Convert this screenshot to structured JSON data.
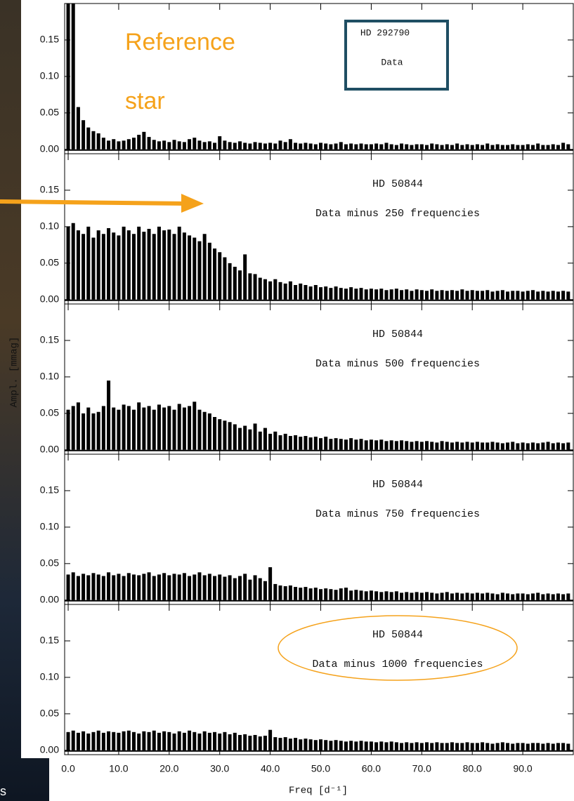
{
  "chart_data": {
    "type": "spectrum",
    "x_label": "Freq [d⁻¹]",
    "y_label": "Ampl. [mmag]",
    "color": "#000000",
    "xlim": [
      -0.7,
      100
    ],
    "ylim": [
      -0.006,
      0.2
    ],
    "xticks": [
      {
        "value": 0,
        "label": "0.0"
      },
      {
        "value": 10,
        "label": "10.0"
      },
      {
        "value": 20,
        "label": "20.0"
      },
      {
        "value": 30,
        "label": "30.0"
      },
      {
        "value": 40,
        "label": "40.0"
      },
      {
        "value": 50,
        "label": "50.0"
      },
      {
        "value": 60,
        "label": "60.0"
      },
      {
        "value": 70,
        "label": "70.0"
      },
      {
        "value": 80,
        "label": "80.0"
      },
      {
        "value": 90,
        "label": "90.0"
      }
    ],
    "yticks": [
      {
        "value": 0,
        "label": "0.00"
      },
      {
        "value": 0.05,
        "label": "0.05"
      },
      {
        "value": 0.1,
        "label": "0.10"
      },
      {
        "value": 0.15,
        "label": "0.15"
      }
    ],
    "x": [
      0,
      1,
      2,
      3,
      4,
      5,
      6,
      7,
      8,
      9,
      10,
      11,
      12,
      13,
      14,
      15,
      16,
      17,
      18,
      19,
      20,
      21,
      22,
      23,
      24,
      25,
      26,
      27,
      28,
      29,
      30,
      31,
      32,
      33,
      34,
      35,
      36,
      37,
      38,
      39,
      40,
      41,
      42,
      43,
      44,
      45,
      46,
      47,
      48,
      49,
      50,
      51,
      52,
      53,
      54,
      55,
      56,
      57,
      58,
      59,
      60,
      61,
      62,
      63,
      64,
      65,
      66,
      67,
      68,
      69,
      70,
      71,
      72,
      73,
      74,
      75,
      76,
      77,
      78,
      79,
      80,
      81,
      82,
      83,
      84,
      85,
      86,
      87,
      88,
      89,
      90,
      91,
      92,
      93,
      94,
      95,
      96,
      97,
      98,
      99
    ],
    "panels": [
      {
        "title": "HD 292790",
        "subtitle": "Data",
        "values": [
          0.2,
          0.2,
          0.058,
          0.04,
          0.03,
          0.025,
          0.022,
          0.016,
          0.012,
          0.014,
          0.011,
          0.012,
          0.014,
          0.016,
          0.02,
          0.024,
          0.017,
          0.013,
          0.011,
          0.012,
          0.01,
          0.013,
          0.011,
          0.01,
          0.014,
          0.016,
          0.012,
          0.01,
          0.011,
          0.009,
          0.018,
          0.012,
          0.01,
          0.009,
          0.011,
          0.009,
          0.008,
          0.01,
          0.009,
          0.008,
          0.009,
          0.008,
          0.012,
          0.01,
          0.014,
          0.009,
          0.008,
          0.009,
          0.008,
          0.007,
          0.009,
          0.008,
          0.007,
          0.008,
          0.01,
          0.007,
          0.008,
          0.007,
          0.008,
          0.007,
          0.007,
          0.008,
          0.007,
          0.009,
          0.007,
          0.006,
          0.008,
          0.007,
          0.006,
          0.007,
          0.007,
          0.006,
          0.008,
          0.007,
          0.006,
          0.007,
          0.006,
          0.008,
          0.006,
          0.007,
          0.006,
          0.007,
          0.006,
          0.008,
          0.006,
          0.007,
          0.006,
          0.006,
          0.007,
          0.006,
          0.006,
          0.007,
          0.006,
          0.008,
          0.006,
          0.006,
          0.007,
          0.006,
          0.009,
          0.007
        ]
      },
      {
        "title": "HD 50844",
        "subtitle": "Data minus 250 frequencies",
        "values": [
          0.1,
          0.105,
          0.095,
          0.09,
          0.1,
          0.085,
          0.095,
          0.09,
          0.098,
          0.092,
          0.088,
          0.1,
          0.095,
          0.09,
          0.1,
          0.093,
          0.097,
          0.09,
          0.1,
          0.095,
          0.096,
          0.09,
          0.1,
          0.092,
          0.088,
          0.085,
          0.08,
          0.09,
          0.078,
          0.07,
          0.065,
          0.058,
          0.05,
          0.045,
          0.04,
          0.062,
          0.036,
          0.035,
          0.03,
          0.028,
          0.025,
          0.028,
          0.024,
          0.022,
          0.025,
          0.02,
          0.022,
          0.02,
          0.018,
          0.02,
          0.017,
          0.018,
          0.016,
          0.018,
          0.016,
          0.015,
          0.017,
          0.015,
          0.016,
          0.014,
          0.015,
          0.014,
          0.015,
          0.013,
          0.014,
          0.015,
          0.013,
          0.014,
          0.012,
          0.014,
          0.013,
          0.012,
          0.014,
          0.012,
          0.013,
          0.012,
          0.013,
          0.012,
          0.014,
          0.012,
          0.013,
          0.012,
          0.012,
          0.013,
          0.011,
          0.012,
          0.013,
          0.011,
          0.012,
          0.012,
          0.011,
          0.012,
          0.013,
          0.011,
          0.012,
          0.011,
          0.012,
          0.011,
          0.012,
          0.011
        ]
      },
      {
        "title": "HD 50844",
        "subtitle": "Data minus 500 frequencies",
        "values": [
          0.055,
          0.06,
          0.065,
          0.05,
          0.058,
          0.05,
          0.052,
          0.06,
          0.095,
          0.058,
          0.055,
          0.062,
          0.06,
          0.055,
          0.065,
          0.058,
          0.06,
          0.055,
          0.062,
          0.058,
          0.06,
          0.055,
          0.063,
          0.058,
          0.06,
          0.066,
          0.055,
          0.052,
          0.05,
          0.045,
          0.042,
          0.04,
          0.038,
          0.035,
          0.03,
          0.033,
          0.028,
          0.036,
          0.025,
          0.03,
          0.022,
          0.025,
          0.02,
          0.022,
          0.019,
          0.02,
          0.018,
          0.019,
          0.017,
          0.018,
          0.016,
          0.018,
          0.015,
          0.016,
          0.015,
          0.014,
          0.016,
          0.014,
          0.015,
          0.013,
          0.014,
          0.013,
          0.014,
          0.012,
          0.013,
          0.012,
          0.013,
          0.012,
          0.011,
          0.012,
          0.011,
          0.012,
          0.011,
          0.01,
          0.012,
          0.011,
          0.01,
          0.011,
          0.01,
          0.011,
          0.01,
          0.011,
          0.01,
          0.01,
          0.011,
          0.01,
          0.009,
          0.01,
          0.011,
          0.009,
          0.01,
          0.009,
          0.01,
          0.009,
          0.01,
          0.011,
          0.009,
          0.01,
          0.009,
          0.01
        ]
      },
      {
        "title": "HD 50844",
        "subtitle": "Data minus 750 frequencies",
        "values": [
          0.035,
          0.038,
          0.033,
          0.036,
          0.034,
          0.037,
          0.035,
          0.033,
          0.038,
          0.034,
          0.036,
          0.033,
          0.037,
          0.035,
          0.034,
          0.036,
          0.038,
          0.033,
          0.035,
          0.037,
          0.034,
          0.036,
          0.035,
          0.037,
          0.033,
          0.035,
          0.038,
          0.034,
          0.036,
          0.033,
          0.035,
          0.032,
          0.034,
          0.03,
          0.033,
          0.036,
          0.028,
          0.034,
          0.03,
          0.026,
          0.045,
          0.022,
          0.02,
          0.019,
          0.02,
          0.018,
          0.017,
          0.018,
          0.016,
          0.017,
          0.015,
          0.016,
          0.015,
          0.014,
          0.016,
          0.017,
          0.013,
          0.014,
          0.013,
          0.012,
          0.013,
          0.012,
          0.011,
          0.012,
          0.011,
          0.012,
          0.01,
          0.011,
          0.01,
          0.011,
          0.01,
          0.011,
          0.01,
          0.009,
          0.01,
          0.011,
          0.009,
          0.01,
          0.009,
          0.01,
          0.009,
          0.01,
          0.009,
          0.01,
          0.009,
          0.008,
          0.01,
          0.009,
          0.008,
          0.009,
          0.009,
          0.008,
          0.009,
          0.01,
          0.008,
          0.009,
          0.008,
          0.009,
          0.008,
          0.009
        ]
      },
      {
        "title": "HD 50844",
        "subtitle": "Data minus 1000 frequencies",
        "values": [
          0.025,
          0.027,
          0.024,
          0.026,
          0.023,
          0.025,
          0.027,
          0.024,
          0.026,
          0.025,
          0.024,
          0.026,
          0.027,
          0.025,
          0.023,
          0.026,
          0.025,
          0.027,
          0.024,
          0.026,
          0.025,
          0.023,
          0.026,
          0.024,
          0.027,
          0.025,
          0.023,
          0.026,
          0.024,
          0.025,
          0.023,
          0.025,
          0.022,
          0.024,
          0.021,
          0.022,
          0.02,
          0.021,
          0.019,
          0.02,
          0.028,
          0.018,
          0.017,
          0.018,
          0.016,
          0.017,
          0.015,
          0.016,
          0.015,
          0.014,
          0.015,
          0.014,
          0.013,
          0.014,
          0.013,
          0.012,
          0.013,
          0.012,
          0.013,
          0.012,
          0.012,
          0.011,
          0.012,
          0.011,
          0.012,
          0.011,
          0.01,
          0.011,
          0.01,
          0.011,
          0.01,
          0.011,
          0.01,
          0.011,
          0.01,
          0.01,
          0.011,
          0.01,
          0.01,
          0.011,
          0.01,
          0.01,
          0.011,
          0.01,
          0.009,
          0.01,
          0.011,
          0.01,
          0.009,
          0.01,
          0.01,
          0.009,
          0.01,
          0.01,
          0.009,
          0.01,
          0.009,
          0.01,
          0.01,
          0.009
        ]
      }
    ]
  },
  "annotations": {
    "callout": [
      "Reference",
      "star"
    ],
    "corner_text": "s"
  }
}
